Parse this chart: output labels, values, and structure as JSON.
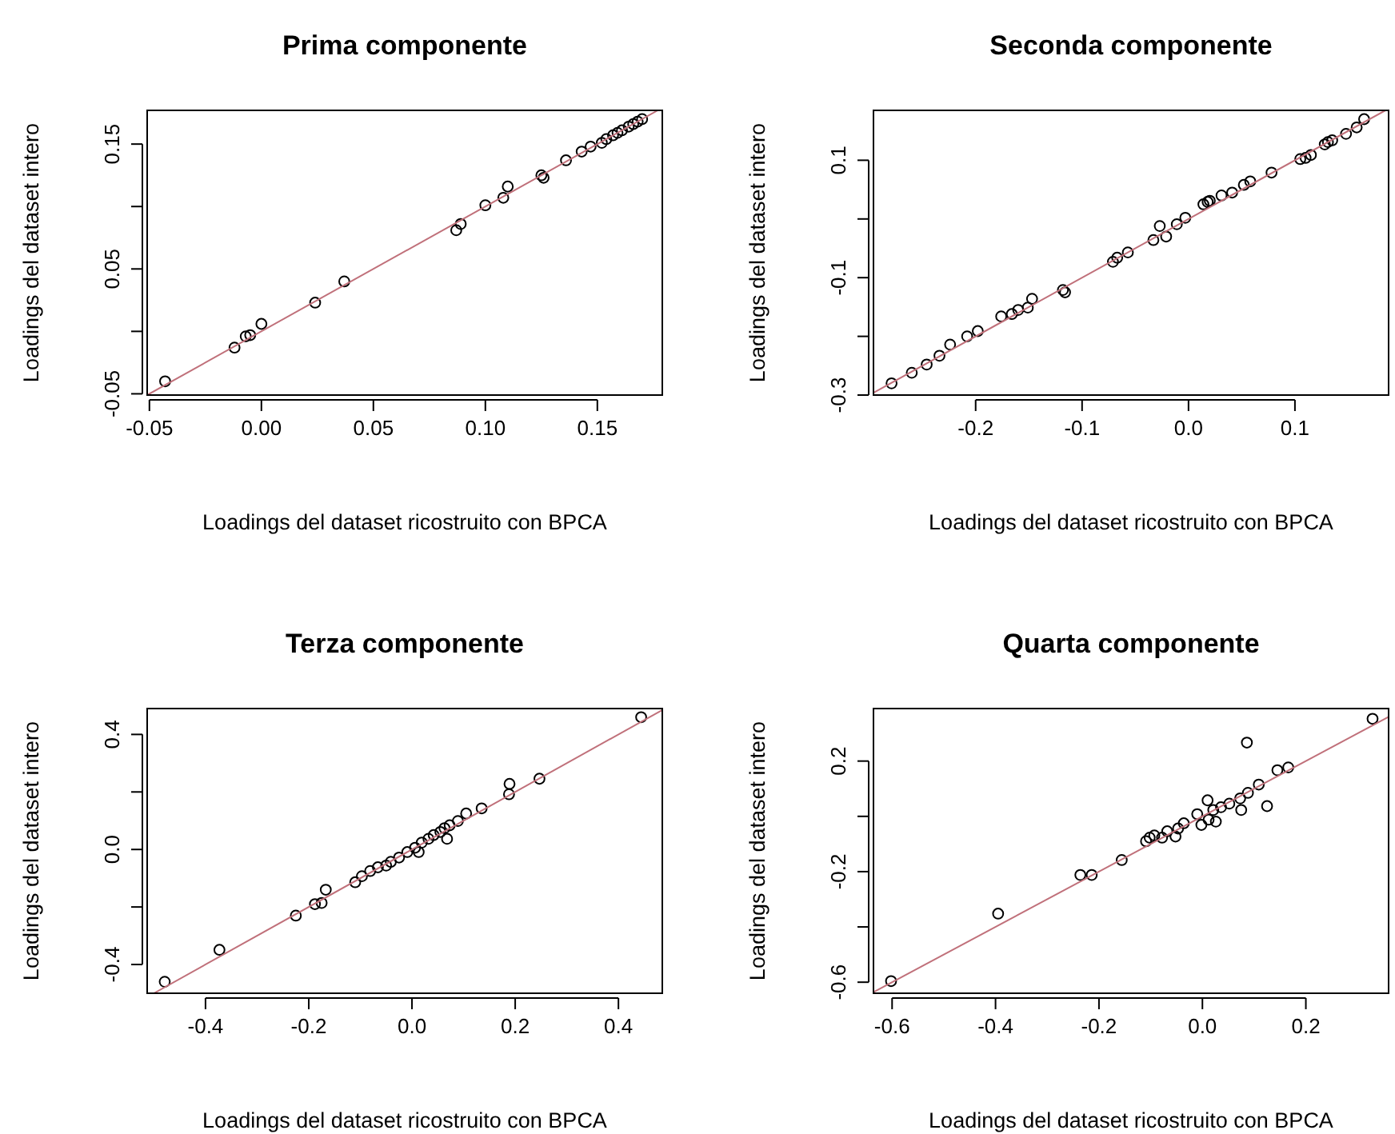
{
  "chart_data": [
    {
      "type": "scatter",
      "title": "Prima componente",
      "xlabel": "Loadings del dataset ricostruito con BPCA",
      "ylabel": "Loadings del dataset intero",
      "xlim": [
        -0.051,
        0.179
      ],
      "ylim": [
        -0.051,
        0.177
      ],
      "xticks": [
        {
          "value": -0.05,
          "label": "-0.05"
        },
        {
          "value": 0,
          "label": "0.00"
        },
        {
          "value": 0.05,
          "label": "0.05"
        },
        {
          "value": 0.1,
          "label": "0.10"
        },
        {
          "value": 0.15,
          "label": "0.15"
        }
      ],
      "yticks": [
        {
          "value": -0.05,
          "label": "-0.05"
        },
        {
          "value": 0,
          "label": null
        },
        {
          "value": 0.05,
          "label": "0.05"
        },
        {
          "value": 0.1,
          "label": null
        },
        {
          "value": 0.15,
          "label": "0.15"
        }
      ],
      "series": [
        {
          "marker": "circle",
          "color": "#000000",
          "x": [
            -0.043,
            -0.012,
            -0.007,
            -0.005,
            0.0,
            0.024,
            0.037,
            0.087,
            0.089,
            0.1,
            0.108,
            0.11,
            0.125,
            0.126,
            0.136,
            0.143,
            0.147,
            0.152,
            0.154,
            0.157,
            0.159,
            0.161,
            0.164,
            0.166,
            0.168,
            0.17
          ],
          "values": [
            -0.04,
            -0.013,
            -0.004,
            -0.003,
            0.006,
            0.023,
            0.04,
            0.081,
            0.086,
            0.101,
            0.107,
            0.116,
            0.125,
            0.123,
            0.137,
            0.144,
            0.148,
            0.151,
            0.154,
            0.157,
            0.159,
            0.161,
            0.164,
            0.166,
            0.168,
            0.17
          ]
        },
        {
          "type": "line",
          "marker": "none",
          "color": "#c0707a",
          "x": [
            -0.051,
            0.177
          ],
          "values": [
            -0.051,
            0.177
          ]
        }
      ]
    },
    {
      "type": "scatter",
      "title": "Seconda componente",
      "xlabel": "Loadings del dataset ricostruito con BPCA",
      "ylabel": "Loadings del dataset intero",
      "xlim": [
        -0.296,
        0.188
      ],
      "ylim": [
        -0.3,
        0.185
      ],
      "xticks": [
        {
          "value": -0.2,
          "label": "-0.2"
        },
        {
          "value": -0.1,
          "label": "-0.1"
        },
        {
          "value": 0,
          "label": "0.0"
        },
        {
          "value": 0.1,
          "label": "0.1"
        }
      ],
      "yticks": [
        {
          "value": -0.3,
          "label": "-0.3"
        },
        {
          "value": -0.2,
          "label": null
        },
        {
          "value": -0.1,
          "label": "-0.1"
        },
        {
          "value": 0,
          "label": null
        },
        {
          "value": 0.1,
          "label": "0.1"
        }
      ],
      "series": [
        {
          "marker": "circle",
          "color": "#000000",
          "x": [
            -0.279,
            -0.26,
            -0.246,
            -0.234,
            -0.224,
            -0.208,
            -0.198,
            -0.176,
            -0.166,
            -0.16,
            -0.151,
            -0.147,
            -0.118,
            -0.116,
            -0.071,
            -0.067,
            -0.057,
            -0.033,
            -0.027,
            -0.021,
            -0.011,
            -0.003,
            0.014,
            0.018,
            0.02,
            0.031,
            0.041,
            0.052,
            0.058,
            0.078,
            0.105,
            0.11,
            0.115,
            0.128,
            0.131,
            0.135,
            0.148,
            0.158,
            0.165
          ],
          "values": [
            -0.28,
            -0.262,
            -0.248,
            -0.233,
            -0.214,
            -0.2,
            -0.191,
            -0.166,
            -0.162,
            -0.155,
            -0.151,
            -0.136,
            -0.121,
            -0.125,
            -0.073,
            -0.066,
            -0.057,
            -0.036,
            -0.012,
            -0.03,
            -0.009,
            0.002,
            0.025,
            0.029,
            0.031,
            0.04,
            0.045,
            0.058,
            0.064,
            0.079,
            0.102,
            0.104,
            0.109,
            0.127,
            0.131,
            0.134,
            0.145,
            0.156,
            0.17
          ]
        },
        {
          "type": "line",
          "marker": "none",
          "color": "#c0707a",
          "x": [
            -0.296,
            0.185
          ],
          "values": [
            -0.296,
            0.185
          ]
        }
      ]
    },
    {
      "type": "scatter",
      "title": "Terza componente",
      "xlabel": "Loadings del dataset ricostruito con BPCA",
      "ylabel": "Loadings del dataset intero",
      "xlim": [
        -0.513,
        0.485
      ],
      "ylim": [
        -0.5,
        0.49
      ],
      "xticks": [
        {
          "value": -0.4,
          "label": "-0.4"
        },
        {
          "value": -0.2,
          "label": "-0.2"
        },
        {
          "value": 0,
          "label": "0.0"
        },
        {
          "value": 0.2,
          "label": "0.2"
        },
        {
          "value": 0.4,
          "label": "0.4"
        }
      ],
      "yticks": [
        {
          "value": -0.4,
          "label": "-0.4"
        },
        {
          "value": -0.2,
          "label": null
        },
        {
          "value": 0,
          "label": "0.0"
        },
        {
          "value": 0.2,
          "label": null
        },
        {
          "value": 0.4,
          "label": "0.4"
        }
      ],
      "series": [
        {
          "marker": "circle",
          "color": "#000000",
          "x": [
            -0.479,
            -0.373,
            -0.225,
            -0.188,
            -0.175,
            -0.167,
            -0.11,
            -0.097,
            -0.081,
            -0.066,
            -0.05,
            -0.041,
            -0.025,
            -0.009,
            0.006,
            0.013,
            0.019,
            0.032,
            0.042,
            0.055,
            0.063,
            0.068,
            0.073,
            0.089,
            0.105,
            0.135,
            0.188,
            0.189,
            0.247,
            0.444
          ],
          "values": [
            -0.46,
            -0.349,
            -0.23,
            -0.19,
            -0.186,
            -0.14,
            -0.114,
            -0.093,
            -0.075,
            -0.062,
            -0.056,
            -0.043,
            -0.028,
            -0.009,
            0.006,
            -0.009,
            0.024,
            0.037,
            0.05,
            0.061,
            0.074,
            0.037,
            0.084,
            0.099,
            0.125,
            0.143,
            0.192,
            0.228,
            0.246,
            0.46
          ]
        },
        {
          "type": "line",
          "marker": "none",
          "color": "#c0707a",
          "x": [
            -0.5,
            0.485
          ],
          "values": [
            -0.5,
            0.485
          ]
        }
      ]
    },
    {
      "type": "scatter",
      "title": "Quarta componente",
      "xlabel": "Loadings del dataset ricostruito con BPCA",
      "ylabel": "Loadings del dataset intero",
      "xlim": [
        -0.636,
        0.36
      ],
      "ylim": [
        -0.64,
        0.39
      ],
      "xticks": [
        {
          "value": -0.6,
          "label": "-0.6"
        },
        {
          "value": -0.4,
          "label": "-0.4"
        },
        {
          "value": -0.2,
          "label": "-0.2"
        },
        {
          "value": 0,
          "label": "0.0"
        },
        {
          "value": 0.2,
          "label": "0.2"
        }
      ],
      "yticks": [
        {
          "value": -0.6,
          "label": "-0.6"
        },
        {
          "value": -0.4,
          "label": null
        },
        {
          "value": -0.2,
          "label": "-0.2"
        },
        {
          "value": 0,
          "label": null
        },
        {
          "value": 0.2,
          "label": "0.2"
        }
      ],
      "series": [
        {
          "marker": "circle",
          "color": "#000000",
          "x": [
            -0.602,
            -0.395,
            -0.236,
            -0.214,
            -0.156,
            -0.109,
            -0.102,
            -0.093,
            -0.078,
            -0.068,
            -0.052,
            -0.047,
            -0.036,
            -0.01,
            -0.002,
            0.01,
            0.012,
            0.021,
            0.026,
            0.036,
            0.052,
            0.073,
            0.075,
            0.086,
            0.088,
            0.109,
            0.125,
            0.145,
            0.166,
            0.329
          ],
          "values": [
            -0.596,
            -0.352,
            -0.212,
            -0.212,
            -0.158,
            -0.09,
            -0.077,
            -0.069,
            -0.077,
            -0.054,
            -0.073,
            -0.044,
            -0.025,
            0.008,
            -0.031,
            0.058,
            -0.012,
            0.023,
            -0.019,
            0.033,
            0.046,
            0.065,
            0.023,
            0.267,
            0.085,
            0.115,
            0.037,
            0.167,
            0.177,
            0.353
          ]
        },
        {
          "type": "line",
          "marker": "none",
          "color": "#c0707a",
          "x": [
            -0.636,
            0.36
          ],
          "values": [
            -0.636,
            0.36
          ]
        }
      ]
    }
  ]
}
